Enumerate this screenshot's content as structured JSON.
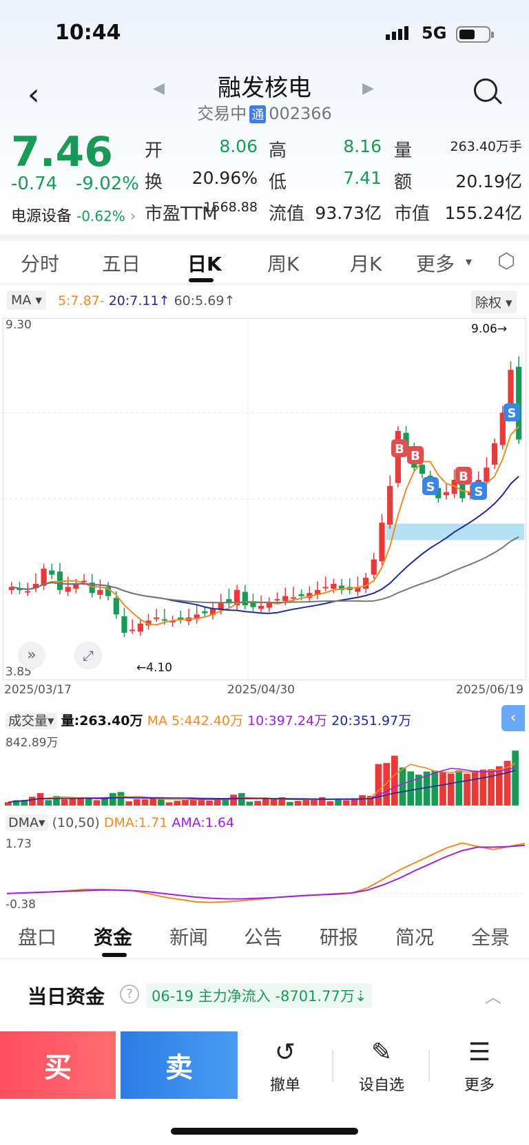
{
  "status": {
    "time": "10:44",
    "network": "5G"
  },
  "header": {
    "title": "融发核电",
    "status": "交易中",
    "badge": "通",
    "code": "002366"
  },
  "quote": {
    "price": "7.46",
    "change": "-0.74",
    "change_pct": "-9.02%",
    "sector": "电源设备",
    "sector_pct": "-0.62%",
    "rows": [
      [
        {
          "label": "开",
          "value": "8.06",
          "green": true
        },
        {
          "label": "高",
          "value": "8.16",
          "green": true
        },
        {
          "label": "量",
          "value": "263.40万手"
        }
      ],
      [
        {
          "label": "换",
          "value": "20.96%"
        },
        {
          "label": "低",
          "value": "7.41",
          "green": true
        },
        {
          "label": "额",
          "value": "20.19亿"
        }
      ],
      [
        {
          "label": "市盈TTM",
          "value": "-1568.88"
        },
        {
          "label": "流值",
          "value": "93.73亿"
        },
        {
          "label": "市值",
          "value": "155.24亿"
        }
      ]
    ]
  },
  "tabs": [
    "分时",
    "五日",
    "日K",
    "周K",
    "月K",
    "更多"
  ],
  "active_tab": "日K",
  "ma_bar": {
    "selector": "MA",
    "ma5": "5:7.87-",
    "ma20": "20:7.11",
    "ma60": "60:5.69",
    "adjust": "除权"
  },
  "kline": {
    "y_high": "9.30",
    "y_low": "3.85",
    "max_label": "9.06",
    "min_label": "4.10",
    "dates": [
      "2025/03/17",
      "2025/04/30",
      "2025/06/19"
    ]
  },
  "volume": {
    "selector": "成交量",
    "vol": "量:263.40万",
    "ma5": "MA 5:442.40万",
    "ma10": "10:397.24万",
    "ma20": "20:351.97万",
    "max": "842.89万"
  },
  "dma": {
    "selector": "DMA",
    "params": "(10,50)",
    "dma": "DMA:1.71",
    "ama": "AMA:1.64",
    "high": "1.73",
    "low": "-0.38"
  },
  "bottom_tabs": [
    "盘口",
    "资金",
    "新闻",
    "公告",
    "研报",
    "简况",
    "全景"
  ],
  "bottom_active": "资金",
  "fund": {
    "title": "当日资金",
    "date": "06-19",
    "label": "主力净流入",
    "value": "-8701.77万"
  },
  "actions": {
    "buy": "买",
    "sell": "卖",
    "cancel": "撤单",
    "watch": "设自选",
    "more": "更多"
  },
  "colors": {
    "up": "#e83a3a",
    "down": "#1a9a57",
    "ma5": "#f08a26",
    "ma20": "#1e2a9a",
    "ma60": "#777777",
    "ama": "#a020e0"
  }
}
